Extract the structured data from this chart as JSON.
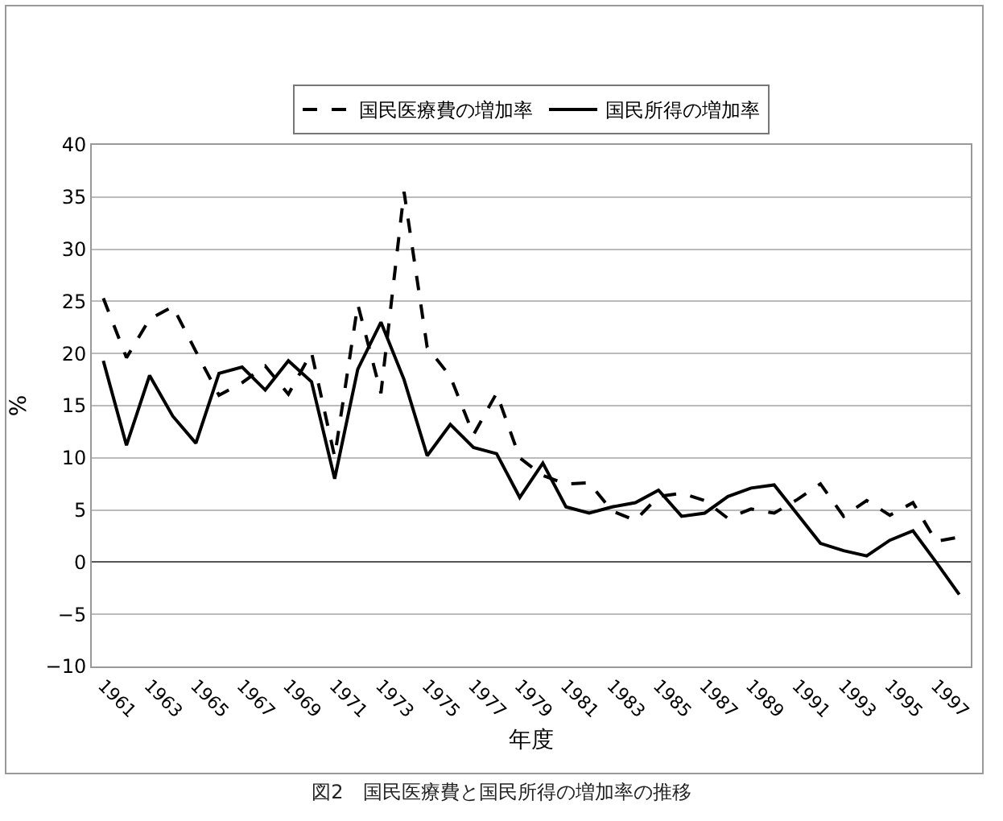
{
  "chart_data": {
    "type": "line",
    "xlabel": "年度",
    "ylabel": "%",
    "categories": [
      "1961",
      null,
      "1963",
      null,
      "1965",
      null,
      "1967",
      null,
      "1969",
      null,
      "1971",
      null,
      "1973",
      null,
      "1975",
      null,
      "1977",
      null,
      "1979",
      null,
      "1981",
      null,
      "1983",
      null,
      "1985",
      null,
      "1987",
      null,
      "1989",
      null,
      "1991",
      null,
      "1993",
      null,
      "1995",
      null,
      "1997",
      null
    ],
    "series": [
      {
        "name": "国民医療費の増加率",
        "color": "#000000",
        "line_style": "dashed",
        "values": [
          25.3,
          19.6,
          23.3,
          24.5,
          20.2,
          16.0,
          17.2,
          18.8,
          16.1,
          20.1,
          10.1,
          24.7,
          16.2,
          35.5,
          20.6,
          17.8,
          12.2,
          16.2,
          10.0,
          8.3,
          7.5,
          7.6,
          4.9,
          4.0,
          6.3,
          6.6,
          5.9,
          4.2,
          5.1,
          4.7,
          6.0,
          7.5,
          4.4,
          5.9,
          4.5,
          5.7,
          2.0,
          2.4
        ]
      },
      {
        "name": "国民所得の増加率",
        "color": "#000000",
        "line_style": "solid",
        "values": [
          19.3,
          11.2,
          17.9,
          14.0,
          11.4,
          18.1,
          18.7,
          16.5,
          19.3,
          17.3,
          8.0,
          18.5,
          23.0,
          17.5,
          10.2,
          13.2,
          11.0,
          10.4,
          6.2,
          9.5,
          5.3,
          4.7,
          5.3,
          5.7,
          6.9,
          4.4,
          4.7,
          6.3,
          7.1,
          7.4,
          4.6,
          1.8,
          1.1,
          0.6,
          2.1,
          3.0,
          0.0,
          -3.1
        ]
      }
    ],
    "ylim": [
      -10,
      40
    ],
    "yticks": [
      -10,
      -5,
      0,
      5,
      10,
      15,
      20,
      25,
      30,
      35,
      40
    ],
    "grid": "y",
    "legend": "top",
    "marker": "none",
    "annotations": [
      "図2　国民医療費と国民所得の増加率の推移"
    ]
  }
}
